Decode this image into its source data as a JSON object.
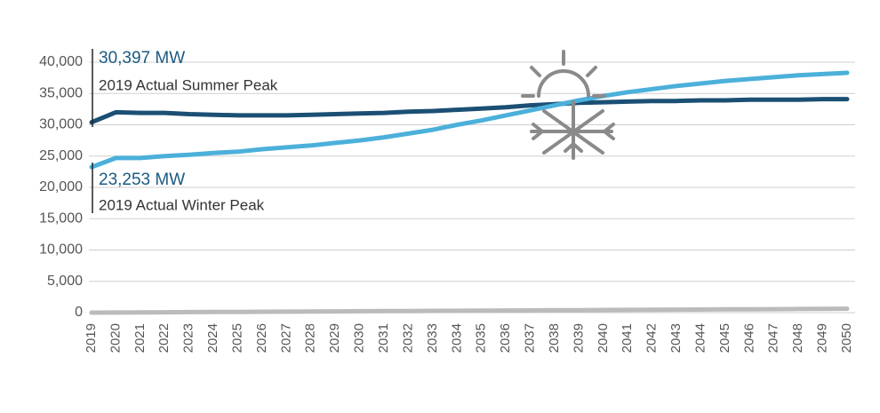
{
  "chart_data": {
    "type": "line",
    "categories": [
      "2019",
      "2020",
      "2021",
      "2022",
      "2023",
      "2024",
      "2025",
      "2026",
      "2027",
      "2028",
      "2029",
      "2030",
      "2031",
      "2032",
      "2033",
      "2034",
      "2035",
      "2036",
      "2037",
      "2038",
      "2039",
      "2040",
      "2041",
      "2042",
      "2043",
      "2044",
      "2045",
      "2046",
      "2047",
      "2048",
      "2049",
      "2050"
    ],
    "series": [
      {
        "color": "#1b4f74",
        "values": [
          30397,
          32000,
          31900,
          31900,
          31700,
          31600,
          31500,
          31500,
          31500,
          31600,
          31700,
          31800,
          31900,
          32100,
          32200,
          32400,
          32600,
          32800,
          33100,
          33300,
          33500,
          33600,
          33700,
          33800,
          33800,
          33900,
          33900,
          34000,
          34000,
          34000,
          34100,
          34100
        ]
      },
      {
        "color": "#4bb0da",
        "values": [
          23253,
          24700,
          24700,
          25000,
          25200,
          25500,
          25700,
          26100,
          26400,
          26700,
          27100,
          27500,
          28000,
          28600,
          29200,
          30000,
          30700,
          31500,
          32300,
          33100,
          33900,
          34600,
          35200,
          35700,
          36200,
          36600,
          37000,
          37300,
          37600,
          37900,
          38100,
          38300
        ]
      },
      {
        "color": "#bbbbbb",
        "values": [
          0,
          20,
          40,
          60,
          80,
          100,
          120,
          140,
          160,
          180,
          200,
          220,
          240,
          260,
          280,
          300,
          320,
          340,
          360,
          380,
          400,
          420,
          440,
          460,
          480,
          500,
          520,
          540,
          560,
          580,
          600,
          620
        ]
      }
    ],
    "ylim": [
      0,
      40000
    ],
    "yticks": [
      0,
      {
        "value": 5000,
        "label": "5,000"
      },
      {
        "value": 10000,
        "label": "10,000"
      },
      {
        "value": 15000,
        "label": "15,000"
      },
      {
        "value": 20000,
        "label": "20,000"
      },
      {
        "value": 25000,
        "label": "25,000"
      },
      {
        "value": 30000,
        "label": "30,000"
      },
      {
        "value": 35000,
        "label": "35,000"
      },
      {
        "value": 40000,
        "label": "40,000"
      }
    ],
    "grid": true,
    "annotations": [
      {
        "value": "30,397 MW",
        "text": "2019 Actual Summer Peak"
      },
      {
        "value": "23,253 MW",
        "text": "2019 Actual Winter Peak"
      }
    ]
  }
}
